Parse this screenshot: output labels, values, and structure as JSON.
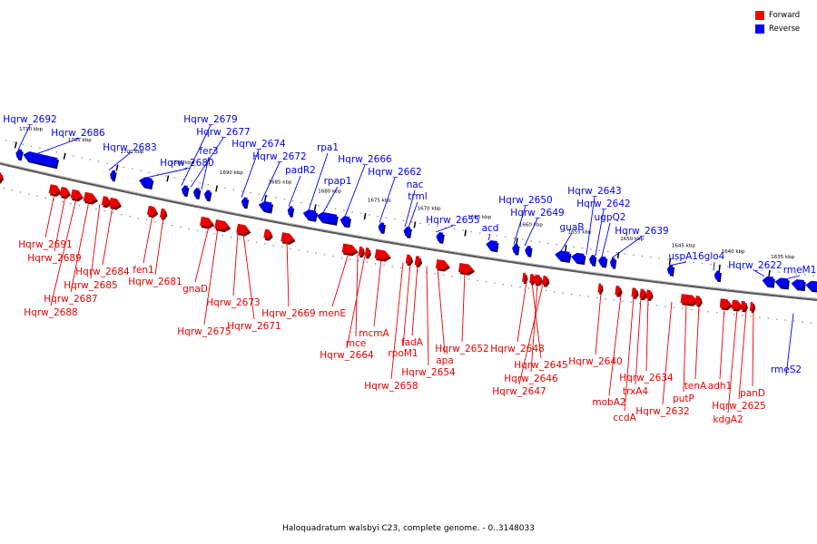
{
  "legend": {
    "forward_label": "Forward",
    "reverse_label": "Reverse",
    "forward_color": "#ff0000",
    "reverse_color": "#0000ff"
  },
  "caption": "Haloquadratum walsbyi C23, complete genome. - 0..3148033",
  "colors": {
    "forward": "#e60000",
    "reverse": "#0000ee",
    "backbone": "#555555"
  },
  "scale": {
    "first_kbp": 1710,
    "last_kbp": 1635,
    "step_kbp": 5,
    "unit": "kbp"
  },
  "ticks": [
    "1710 kbp",
    "1705 kbp",
    "1700 kbp",
    "1695 kbp",
    "1690 kbp",
    "1685 kbp",
    "1680 kbp",
    "1675 kbp",
    "1670 kbp",
    "1665 kbp",
    "1660 kbp",
    "1655 kbp",
    "1650 kbp",
    "1645 kbp",
    "1640 kbp",
    "1635 kbp"
  ],
  "reverse_genes": [
    "Hqrw_2692",
    "Hqrw_2686",
    "Hqrw_2683",
    "Hqrw_2680",
    "Hqrw_2679",
    "Hqrw_2677",
    "fer3",
    "Hqrw_2674",
    "Hqrw_2672",
    "padR2",
    "rpa1",
    "rpap1",
    "Hqrw_2666",
    "Hqrw_2662",
    "nac",
    "trml",
    "Hqrw_2655",
    "acd",
    "Hqrw_2650",
    "Hqrw_2649",
    "guaB",
    "Hqrw_2643",
    "Hqrw_2642",
    "ugpQ2",
    "Hqrw_2639",
    "uspA16",
    "glo4",
    "Hqrw_2622",
    "rmeM1",
    "rmeS2"
  ],
  "forward_genes": [
    "Hqrw_2691",
    "Hqrw_2689",
    "Hqrw_2688",
    "Hqrw_2687",
    "Hqrw_2685",
    "Hqrw_2684",
    "fen1",
    "Hqrw_2681",
    "gnaD",
    "Hqrw_2675",
    "Hqrw_2673",
    "Hqrw_2671",
    "Hqrw_2669",
    "menE",
    "mce",
    "Hqrw_2664",
    "mcmA",
    "Hqrw_2658",
    "rpoM1",
    "fadA",
    "Hqrw_2654",
    "apa",
    "Hqrw_2652",
    "Hqrw_2648",
    "Hqrw_2645",
    "Hqrw_2646",
    "Hqrw_2647",
    "Hqrw_2640",
    "mobA2",
    "ccdA",
    "trxA4",
    "Hqrw_2634",
    "Hqrw_2632",
    "putP",
    "tenA",
    "adh1",
    "kdgA2",
    "Hqrw_2625",
    "panD"
  ]
}
